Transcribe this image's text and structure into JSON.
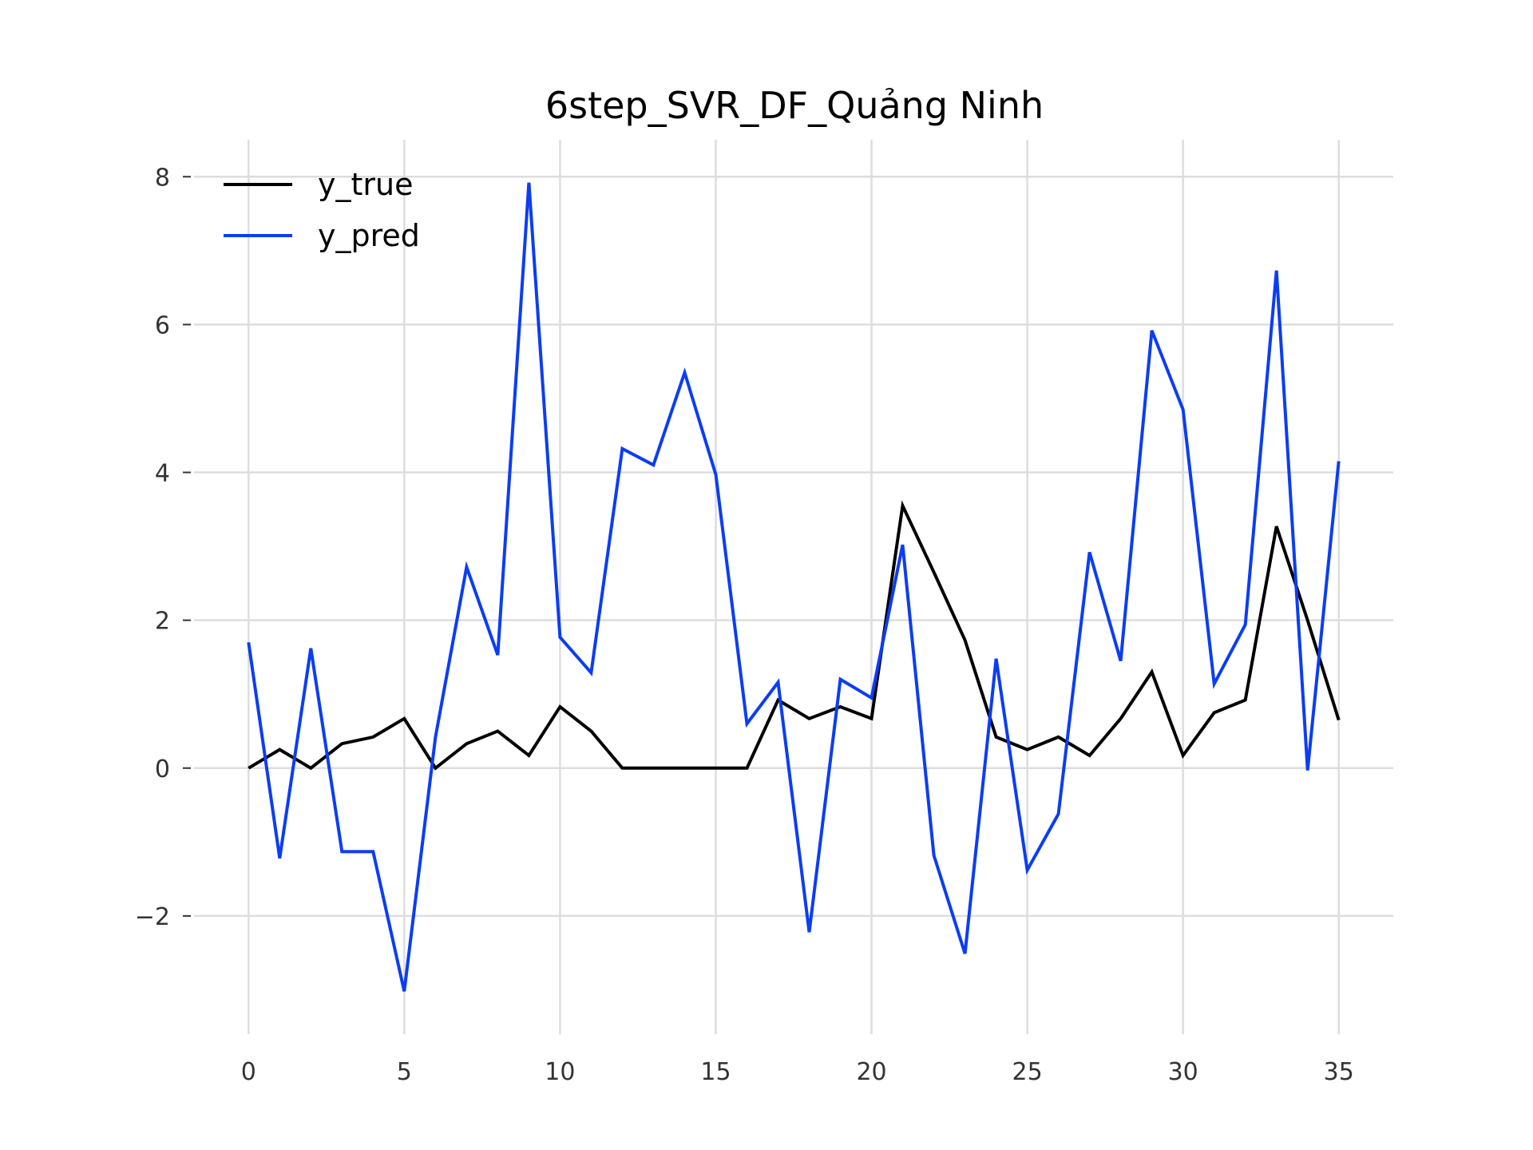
{
  "chart_data": {
    "type": "line",
    "title": "6step_SVR_DF_Quảng Ninh",
    "xlabel": "",
    "ylabel": "",
    "xlim": [
      -1.75,
      36.75
    ],
    "ylim": [
      -3.6,
      8.5
    ],
    "xticks": [
      0,
      5,
      10,
      15,
      20,
      25,
      30,
      35
    ],
    "yticks": [
      -2,
      0,
      2,
      4,
      6,
      8
    ],
    "grid": true,
    "legend_position": "top-left",
    "x": [
      0,
      1,
      2,
      3,
      4,
      5,
      6,
      7,
      8,
      9,
      10,
      11,
      12,
      13,
      14,
      15,
      16,
      17,
      18,
      19,
      20,
      21,
      22,
      23,
      24,
      25,
      26,
      27,
      28,
      29,
      30,
      31,
      32,
      33,
      34,
      35
    ],
    "series": [
      {
        "name": "y_true",
        "color": "#000000",
        "values": [
          0.0,
          0.25,
          0.0,
          0.33,
          0.42,
          0.67,
          0.0,
          0.33,
          0.5,
          0.17,
          0.83,
          0.5,
          0.0,
          0.0,
          0.0,
          0.0,
          0.0,
          0.92,
          0.67,
          0.83,
          0.67,
          3.55,
          2.65,
          1.73,
          0.42,
          0.25,
          0.42,
          0.17,
          0.67,
          1.3,
          0.17,
          0.75,
          0.92,
          3.27,
          2.0,
          0.65
        ]
      },
      {
        "name": "y_pred",
        "color": "#0b3df5",
        "values": [
          1.7,
          -1.22,
          1.62,
          -1.13,
          -1.13,
          -3.02,
          0.42,
          2.72,
          1.53,
          7.92,
          1.77,
          1.29,
          4.32,
          4.1,
          5.35,
          3.97,
          0.6,
          1.16,
          -2.22,
          1.2,
          0.95,
          3.02,
          -1.18,
          -2.51,
          1.48,
          -1.38,
          -0.62,
          2.92,
          1.45,
          5.92,
          4.85,
          1.14,
          1.94,
          6.73,
          -0.03,
          4.15
        ]
      }
    ]
  }
}
